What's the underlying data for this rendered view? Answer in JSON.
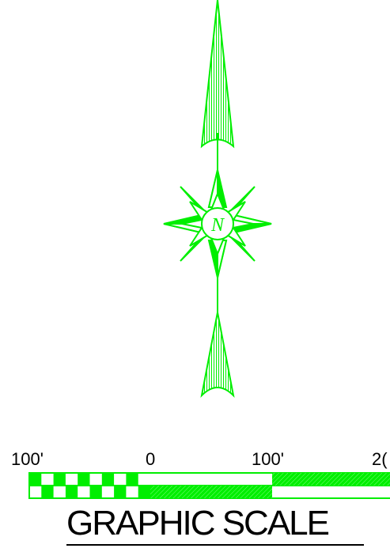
{
  "north_arrow": {
    "letter": "N",
    "color": "#00ee00",
    "icon": "compass-rose-icon"
  },
  "graphic_scale": {
    "title": "GRAPHIC SCALE",
    "labels": [
      "100'",
      "0",
      "100'",
      "2("
    ],
    "color": "#00ee00"
  }
}
